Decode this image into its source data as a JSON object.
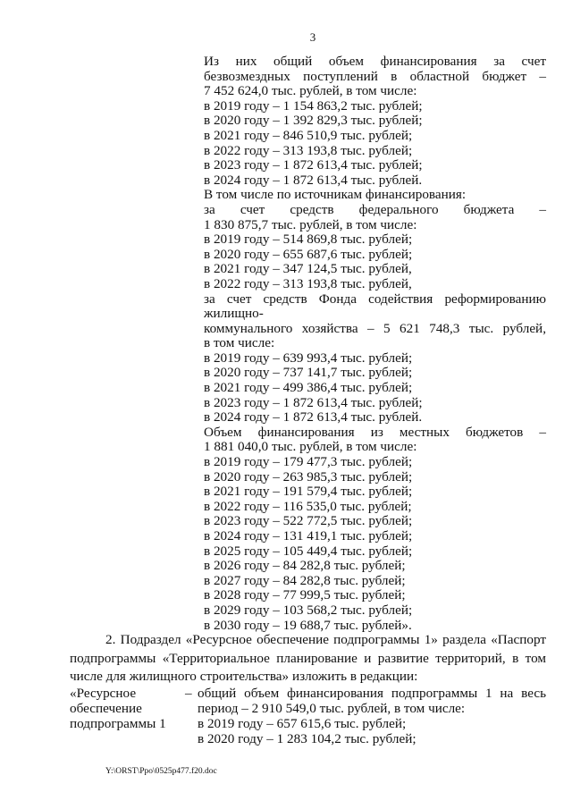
{
  "page_number": "3",
  "funding_text": [
    "Из них общий объем финансирования за счет",
    "безвозмездных поступлений в областной бюджет –",
    "7 452 624,0 тыс. рублей, в том числе:",
    "в 2019 году – 1 154 863,2 тыс. рублей;",
    "в 2020 году – 1 392 829,3 тыс. рублей;",
    "в 2021 году – 846 510,9 тыс. рублей;",
    "в 2022 году – 313 193,8 тыс. рублей;",
    "в 2023 году – 1 872 613,4 тыс. рублей;",
    "в 2024 году – 1 872 613,4 тыс. рублей.",
    "В том числе по источникам финансирования:",
    "за счет средств федерального бюджета –",
    "1 830 875,7 тыс. рублей, в том числе:",
    "в 2019 году – 514 869,8 тыс. рублей;",
    "в 2020 году – 655 687,6 тыс. рублей;",
    "в 2021 году – 347 124,5 тыс. рублей,",
    "в 2022 году – 313 193,8 тыс. рублей,",
    "за счет средств Фонда содействия реформированию жилищно-",
    "коммунального хозяйства – 5 621 748,3 тыс. рублей,",
    "в том числе:",
    "в 2019 году – 639 993,4 тыс. рублей;",
    "в 2020 году – 737 141,7 тыс. рублей;",
    "в 2021 году – 499 386,4 тыс. рублей;",
    "в 2023 году – 1 872 613,4 тыс. рублей;",
    "в 2024 году – 1 872 613,4 тыс. рублей.",
    "Объем финансирования из местных бюджетов –",
    "1 881 040,0 тыс. рублей, в том числе:",
    "в 2019 году – 179 477,3 тыс. рублей;",
    "в 2020 году – 263 985,3 тыс. рублей;",
    "в 2021 году – 191 579,4 тыс. рублей;",
    "в 2022 году – 116 535,0 тыс. рублей;",
    "в 2023 году – 522 772,5 тыс. рублей;",
    "в 2024 году – 131 419,1 тыс. рублей;",
    "в 2025 году – 105 449,4 тыс. рублей;",
    "в 2026 году – 84 282,8 тыс. рублей;",
    "в 2027 году – 84 282,8 тыс. рублей;",
    "в 2028 году – 77 999,5 тыс. рублей;",
    "в 2029 году – 103 568,2 тыс. рублей;",
    "в 2030 году – 19 688,7 тыс. рублей»."
  ],
  "section2": {
    "lines": [
      "2. Подраздел «Ресурсное обеспечение подпрограммы 1» раздела «Паспорт",
      "подпрограммы «Территориальное планирование и развитие территорий, в том",
      "числе для жилищного строительства» изложить в редакции:"
    ]
  },
  "table": {
    "label_lines": [
      "«Ресурсное",
      "обеспечение",
      "подпрограммы 1"
    ],
    "dash": "–",
    "value_lines": [
      "общий объем финансирования подпрограммы 1 на весь",
      "период – 2 910 549,0 тыс. рублей, в том числе:",
      "в 2019 году – 657 615,6 тыс. рублей;",
      "в 2020 году – 1 283 104,2 тыс. рублей;"
    ]
  },
  "footer": "Y:\\ORST\\Ppo\\0525p477.f20.doc"
}
